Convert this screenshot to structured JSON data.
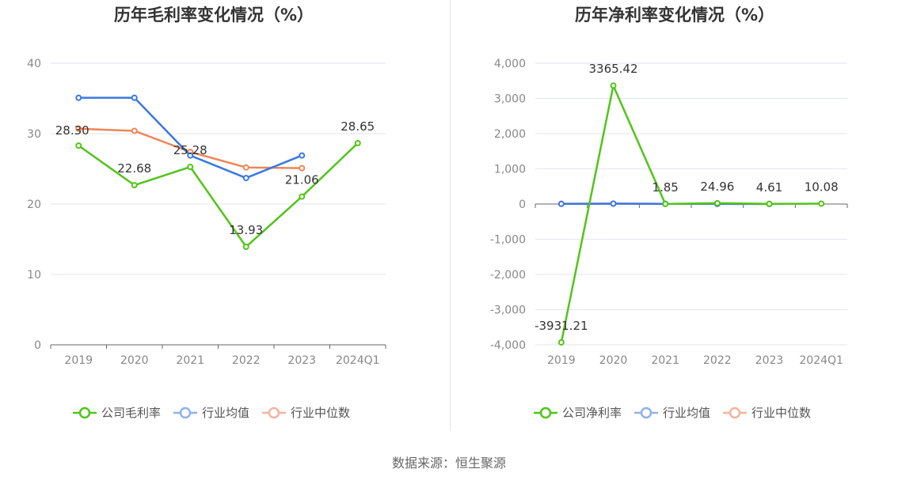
{
  "source_label": "数据来源：恒生聚源",
  "colors": {
    "company": "#52c41a",
    "industry_avg": "#3a78e0",
    "industry_median": "#ef8557"
  },
  "legend_colors": {
    "company": "#52c41a",
    "industry_avg": "#8fb2ef",
    "industry_median": "#f4b49c"
  },
  "chart_data": [
    {
      "type": "line",
      "title": "历年毛利率变化情况（%）",
      "categories": [
        "2019",
        "2020",
        "2021",
        "2022",
        "2023",
        "2024Q1"
      ],
      "ylim": [
        0,
        40
      ],
      "yticks": [
        0,
        10,
        20,
        30,
        40
      ],
      "ytick_labels": [
        "0",
        "10",
        "20",
        "30",
        "40"
      ],
      "grid": true,
      "legend": "bottom",
      "series": [
        {
          "name": "公司毛利率",
          "key": "company",
          "values": [
            28.3,
            22.68,
            25.28,
            13.93,
            21.06,
            28.65
          ],
          "labels": [
            "28.30",
            "22.68",
            "25.28",
            "13.93",
            "21.06",
            "28.65"
          ]
        },
        {
          "name": "行业均值",
          "key": "industry_avg",
          "values": [
            35.1,
            35.1,
            26.9,
            23.7,
            26.9,
            null
          ]
        },
        {
          "name": "行业中位数",
          "key": "industry_median",
          "values": [
            30.7,
            30.4,
            27.4,
            25.2,
            25.1,
            null
          ]
        }
      ]
    },
    {
      "type": "line",
      "title": "历年净利率变化情况（%）",
      "categories": [
        "2019",
        "2020",
        "2021",
        "2022",
        "2023",
        "2024Q1"
      ],
      "ylim": [
        -4000,
        4000
      ],
      "yticks": [
        -4000,
        -3000,
        -2000,
        -1000,
        0,
        1000,
        2000,
        3000,
        4000
      ],
      "ytick_labels": [
        "-4,000",
        "-3,000",
        "-2,000",
        "-1,000",
        "0",
        "1,000",
        "2,000",
        "3,000",
        "4,000"
      ],
      "grid": true,
      "legend": "bottom",
      "series": [
        {
          "name": "公司净利率",
          "key": "company",
          "values": [
            -3931.21,
            3365.42,
            1.85,
            24.96,
            4.61,
            10.08
          ],
          "labels": [
            "-3931.21",
            "3365.42",
            "1.85",
            "24.96",
            "4.61",
            "10.08"
          ]
        },
        {
          "name": "行业均值",
          "key": "industry_avg",
          "values": [
            5,
            10,
            6,
            4,
            3,
            null
          ]
        },
        {
          "name": "行业中位数",
          "key": "industry_median",
          "values": [
            8,
            12,
            7,
            5,
            4,
            null
          ]
        }
      ]
    }
  ]
}
